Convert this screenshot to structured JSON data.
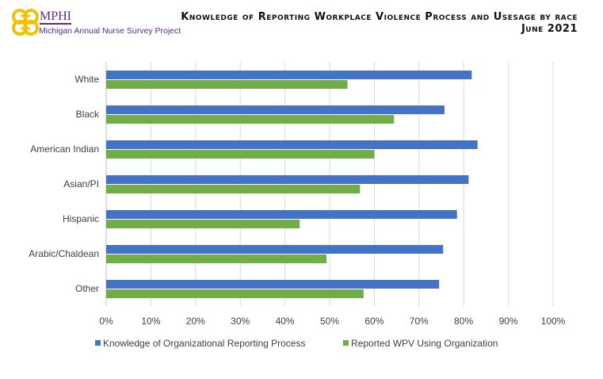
{
  "header": {
    "title_line1": "Knowledge of Reporting Workplace Violence Process and Usesage by race",
    "title_line2": "June 2021",
    "logo_text": "MPHI",
    "logo_subtitle": "Michigan Annual Nurse Survey Project"
  },
  "chart_data": {
    "type": "bar",
    "orientation": "horizontal",
    "categories": [
      "White",
      "Black",
      "American Indian",
      "Asian/PI",
      "Hispanic",
      "Arabic/Chaldean",
      "Other"
    ],
    "series": [
      {
        "name": "Knowledge of Organizational Reporting Process",
        "color": "#4472c4",
        "values": [
          81.8,
          75.7,
          83.1,
          81.1,
          78.5,
          75.4,
          74.5
        ]
      },
      {
        "name": "Reported WPV Using Organization",
        "color": "#70ad47",
        "values": [
          54.0,
          64.4,
          60.0,
          56.8,
          43.3,
          49.3,
          57.6
        ]
      }
    ],
    "xlim": [
      0,
      100
    ],
    "xticks": [
      "0%",
      "10%",
      "20%",
      "30%",
      "40%",
      "50%",
      "60%",
      "70%",
      "80%",
      "90%",
      "100%"
    ],
    "grid": true,
    "legend": "bottom"
  }
}
